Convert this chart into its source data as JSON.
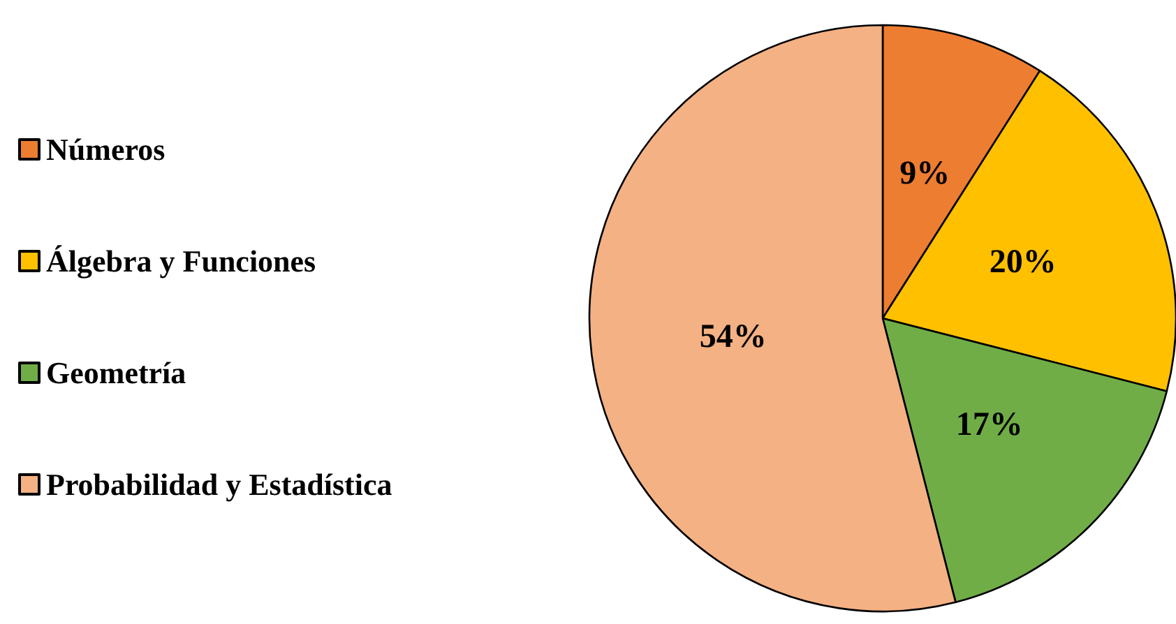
{
  "chart_data": {
    "type": "pie",
    "categories": [
      "Números",
      "Álgebra y Funciones",
      "Geometría",
      "Probabilidad y Estadística"
    ],
    "values": [
      9,
      20,
      17,
      54
    ],
    "colors": [
      "#ed7d31",
      "#ffc000",
      "#70ad47",
      "#f4b183"
    ],
    "value_labels": [
      "9%",
      "20%",
      "17%",
      "54%"
    ],
    "legend": "left"
  }
}
